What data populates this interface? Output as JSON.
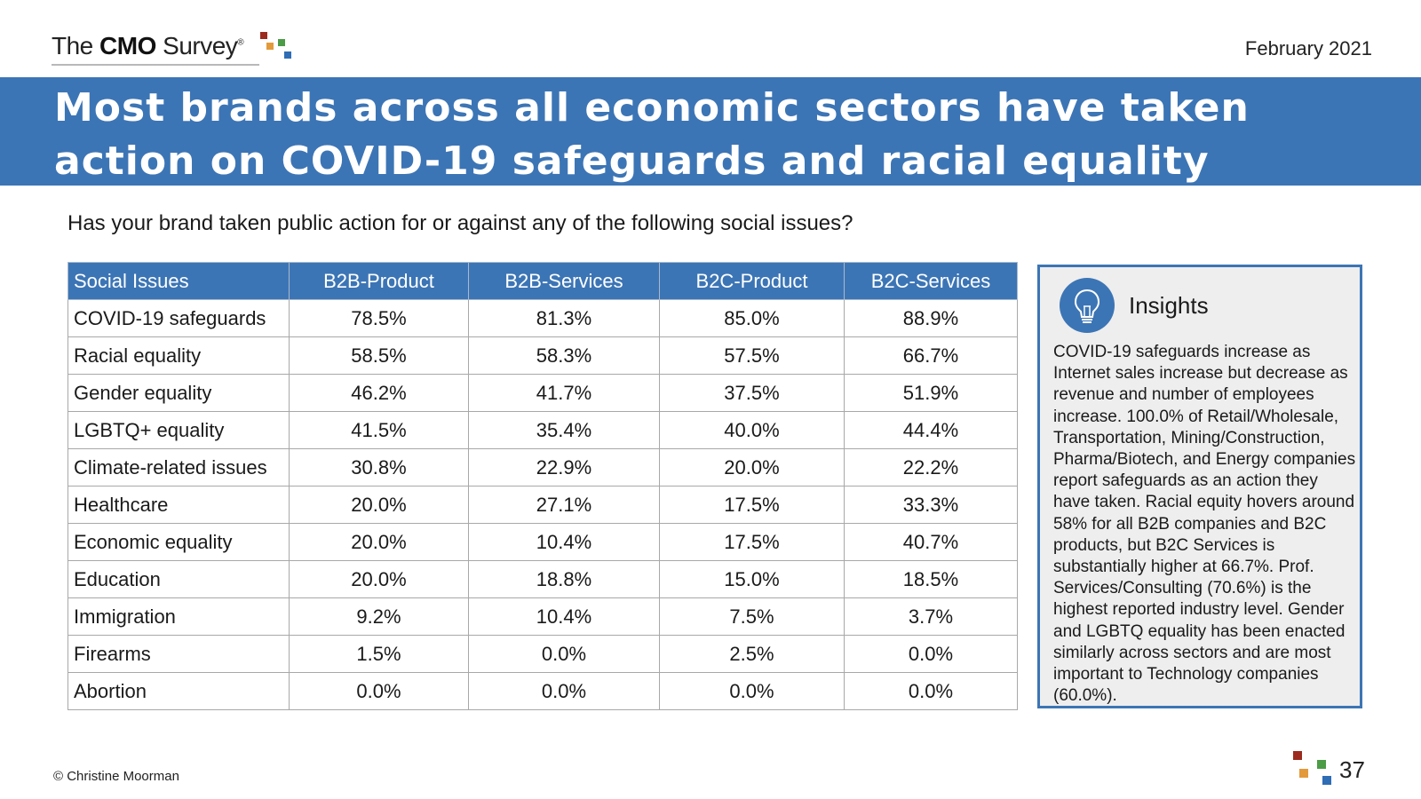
{
  "header": {
    "logo": {
      "prefix": "The ",
      "brand": "CMO",
      "suffix": " Survey",
      "reg": "®"
    },
    "date": "February 2021",
    "title": "Most brands across all economic sectors have taken action on COVID-19 safeguards and racial equality"
  },
  "question": "Has your brand taken public action for or against any of the following social issues?",
  "table": {
    "headers": [
      "Social Issues",
      "B2B-Product",
      "B2B-Services",
      "B2C-Product",
      "B2C-Services"
    ],
    "rows": [
      [
        "COVID-19 safeguards",
        "78.5%",
        "81.3%",
        "85.0%",
        "88.9%"
      ],
      [
        "Racial equality",
        "58.5%",
        "58.3%",
        "57.5%",
        "66.7%"
      ],
      [
        "Gender equality",
        "46.2%",
        "41.7%",
        "37.5%",
        "51.9%"
      ],
      [
        "LGBTQ+ equality",
        "41.5%",
        "35.4%",
        "40.0%",
        "44.4%"
      ],
      [
        "Climate-related issues",
        "30.8%",
        "22.9%",
        "20.0%",
        "22.2%"
      ],
      [
        "Healthcare",
        "20.0%",
        "27.1%",
        "17.5%",
        "33.3%"
      ],
      [
        "Economic equality",
        "20.0%",
        "10.4%",
        "17.5%",
        "40.7%"
      ],
      [
        "Education",
        "20.0%",
        "18.8%",
        "15.0%",
        "18.5%"
      ],
      [
        "Immigration",
        "9.2%",
        "10.4%",
        "7.5%",
        "3.7%"
      ],
      [
        "Firearms",
        "1.5%",
        "0.0%",
        "2.5%",
        "0.0%"
      ],
      [
        "Abortion",
        "0.0%",
        "0.0%",
        "0.0%",
        "0.0%"
      ]
    ]
  },
  "insights": {
    "title": "Insights",
    "icon": "lightbulb-icon",
    "body": "COVID-19 safeguards increase as Internet sales increase but decrease as revenue and number of employees increase. 100.0% of Retail/Wholesale, Transportation, Mining/Construction, Pharma/Biotech, and Energy companies report safeguards as an action they have taken. Racial equity hovers around 58% for all B2B companies and B2C products, but B2C Services is substantially higher at 66.7%. Prof. Services/Consulting (70.6%) is the highest reported industry level. Gender and LGBTQ equality has been enacted similarly across sectors and are most important to Technology companies (60.0%)."
  },
  "footer": {
    "copyright": "© Christine Moorman",
    "page_number": "37"
  },
  "colors": {
    "brand_blue": "#3c75b5",
    "square_red": "#9c2a1e",
    "square_orange": "#e39a3b",
    "square_green": "#4c9b47",
    "square_blue": "#2f6db5"
  }
}
